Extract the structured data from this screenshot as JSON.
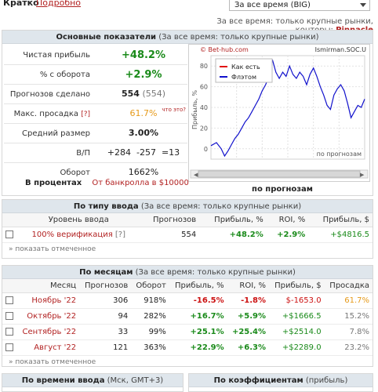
{
  "tabs": {
    "short": "Кратко",
    "detailed": "Подробно"
  },
  "period_select": {
    "value": "За все время (BIG)"
  },
  "filter_line": {
    "prefix": "За все время: только крупные рынки, конторы:",
    "bookmaker": "Pinnacle"
  },
  "main": {
    "title": "Основные показатели",
    "subtitle": "(За все время: только крупные рынки)",
    "stats": [
      {
        "label": "Чистая прибыль",
        "value": "+48.2%"
      },
      {
        "label": "% с оборота",
        "value": "+2.9%"
      },
      {
        "label": "Прогнозов сделано",
        "value": "554",
        "value2": "(554)"
      },
      {
        "label": "Макс. просадка",
        "help": "[?]",
        "value": "61.7%",
        "note": "что это?"
      },
      {
        "label": "Средний размер",
        "value": "3.00%"
      },
      {
        "label": "В/П",
        "value": "+284  -257  =13"
      },
      {
        "label": "Оборот",
        "value": "1662%"
      }
    ],
    "percent_caption": {
      "label": "В процентах",
      "text": "От банкролла в $10000"
    }
  },
  "chart_data": {
    "type": "line",
    "source_left": "© Bet-hub.com",
    "source_right": "Ismirman.SOC.U",
    "ylabel": "Прибыль, %",
    "xlabel": "по прогнозам",
    "caption": "по прогнозам",
    "ylim": [
      -10,
      90
    ],
    "yticks": [
      0,
      20,
      40,
      60,
      80
    ],
    "legend": [
      {
        "name": "Как есть",
        "color": "#e11111"
      },
      {
        "name": "Флэтом",
        "color": "#1111cc"
      }
    ],
    "series": [
      {
        "name": "Флэтом",
        "color": "#1111cc",
        "x": [
          0,
          8,
          15,
          20,
          25,
          30,
          35,
          40,
          45,
          50,
          55,
          60,
          65,
          70,
          75,
          80,
          85,
          90,
          95,
          100,
          105,
          110,
          115,
          120,
          125,
          130,
          135,
          140,
          145,
          150,
          155,
          160,
          165,
          170,
          175,
          180,
          185,
          190,
          195,
          200,
          205,
          210,
          215,
          220,
          225
        ],
        "y": [
          3,
          6,
          0,
          -7,
          -2,
          4,
          10,
          14,
          20,
          26,
          30,
          36,
          42,
          48,
          56,
          62,
          70,
          86,
          74,
          68,
          74,
          70,
          80,
          72,
          68,
          74,
          70,
          62,
          72,
          78,
          70,
          60,
          52,
          42,
          38,
          52,
          58,
          62,
          56,
          44,
          30,
          36,
          42,
          40,
          48
        ]
      }
    ]
  },
  "by_type": {
    "title": "По типу ввода",
    "subtitle": "(За все время: только крупные рынки)",
    "headers": [
      "Уровень ввода",
      "Прогнозов",
      "Прибыль, %",
      "ROI, %",
      "Прибыль, $"
    ],
    "rows": [
      {
        "level": "100% верификация",
        "help": "[?]",
        "count": "554",
        "profit_pct": "+48.2%",
        "roi": "+2.9%",
        "profit_usd": "+$4816.5"
      }
    ],
    "show_marked": "» показать отмеченное"
  },
  "by_month": {
    "title": "По месяцам",
    "subtitle": "(За все время: только крупные рынки)",
    "headers": [
      "Месяц",
      "Прогнозов",
      "Оборот",
      "Прибыль, %",
      "ROI, %",
      "Прибыль, $",
      "Просадка"
    ],
    "rows": [
      {
        "month": "Ноябрь '22",
        "count": "306",
        "turnover": "918%",
        "profit_pct": "-16.5%",
        "roi": "-1.8%",
        "profit_usd": "$-1653.0",
        "drawdown": "61.7%"
      },
      {
        "month": "Октябрь '22",
        "count": "94",
        "turnover": "282%",
        "profit_pct": "+16.7%",
        "roi": "+5.9%",
        "profit_usd": "+$1666.5",
        "drawdown": "15.2%"
      },
      {
        "month": "Сентябрь '22",
        "count": "33",
        "turnover": "99%",
        "profit_pct": "+25.1%",
        "roi": "+25.4%",
        "profit_usd": "+$2514.0",
        "drawdown": "7.8%"
      },
      {
        "month": "Август '22",
        "count": "121",
        "turnover": "363%",
        "profit_pct": "+22.9%",
        "roi": "+6.3%",
        "profit_usd": "+$2289.0",
        "drawdown": "23.2%"
      }
    ],
    "show_marked": "» показать отмеченное"
  },
  "bottom": {
    "left_title": "По времени ввода",
    "left_sub": "(Мск, GMT+3)",
    "right_title": "По коэффициентам",
    "right_sub": "(прибыль)"
  }
}
